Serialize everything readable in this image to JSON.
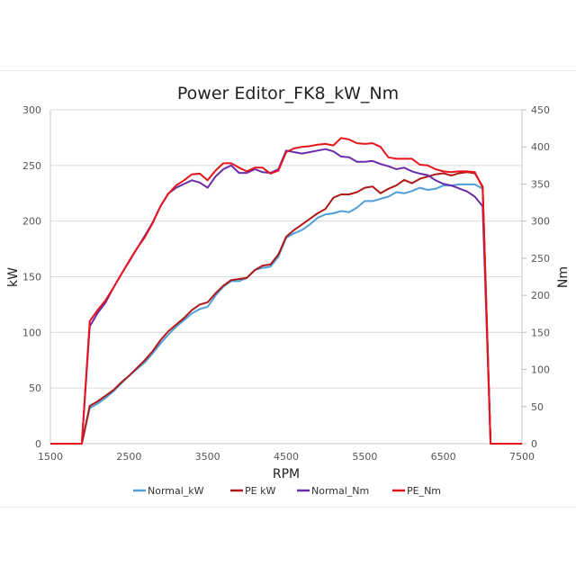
{
  "chart_data": {
    "type": "line",
    "title": "Power Editor_FK8_kW_Nm",
    "xlabel": "RPM",
    "ylabel_left": "kW",
    "ylabel_right": "Nm",
    "xlim": [
      1500,
      7500
    ],
    "ylim_left": [
      0,
      300
    ],
    "ylim_right": [
      0,
      450
    ],
    "x_ticks": [
      1500,
      2500,
      3500,
      4500,
      5500,
      6500,
      7500
    ],
    "y_left_ticks": [
      0,
      50,
      100,
      150,
      200,
      250,
      300
    ],
    "y_right_ticks": [
      0,
      50,
      100,
      150,
      200,
      250,
      300,
      350,
      400,
      450
    ],
    "grid": true,
    "legend_position": "bottom",
    "x": [
      1500,
      1900,
      2000,
      2100,
      2200,
      2300,
      2400,
      2500,
      2600,
      2700,
      2800,
      2900,
      3000,
      3100,
      3200,
      3300,
      3400,
      3500,
      3600,
      3700,
      3800,
      3900,
      4000,
      4100,
      4200,
      4300,
      4400,
      4500,
      4600,
      4700,
      4800,
      4900,
      5000,
      5100,
      5200,
      5300,
      5400,
      5500,
      5600,
      5700,
      5800,
      5900,
      6000,
      6100,
      6200,
      6300,
      6400,
      6500,
      6600,
      6700,
      6800,
      6900,
      7000,
      7100,
      7500
    ],
    "series": [
      {
        "name": "Normal_kW",
        "axis": "left",
        "color": "#4f9fd6",
        "values": [
          0,
          0,
          32,
          36,
          41,
          47,
          54,
          61,
          67,
          73,
          81,
          90,
          98,
          105,
          111,
          117,
          121,
          123,
          133,
          141,
          146,
          146,
          149,
          156,
          158,
          159,
          168,
          185,
          189,
          192,
          197,
          203,
          206,
          207,
          209,
          208,
          212,
          218,
          218,
          220,
          222,
          226,
          225,
          227,
          230,
          228,
          229,
          232,
          232,
          233,
          233,
          233,
          229,
          0,
          0
        ]
      },
      {
        "name": "PE kW",
        "axis": "left",
        "color": "#b01818",
        "values": [
          0,
          0,
          34,
          38,
          43,
          48,
          55,
          61,
          68,
          75,
          83,
          93,
          101,
          107,
          113,
          120,
          125,
          127,
          135,
          142,
          147,
          148,
          149,
          156,
          160,
          161,
          170,
          186,
          192,
          197,
          202,
          207,
          211,
          221,
          224,
          224,
          226,
          230,
          231,
          225,
          229,
          232,
          237,
          234,
          238,
          240,
          242,
          243,
          241,
          243,
          244,
          243,
          231,
          0,
          0
        ]
      },
      {
        "name": "Normal_Nm",
        "axis": "right",
        "color": "#6a2bab",
        "values": [
          0,
          0,
          158,
          176,
          190,
          210,
          228,
          245,
          263,
          280,
          298,
          320,
          337,
          345,
          350,
          355,
          352,
          345,
          360,
          370,
          375,
          365,
          365,
          370,
          366,
          365,
          370,
          395,
          393,
          391,
          393,
          395,
          397,
          394,
          387,
          386,
          380,
          380,
          381,
          377,
          374,
          370,
          372,
          367,
          364,
          362,
          355,
          350,
          348,
          344,
          340,
          333,
          320,
          0,
          0
        ]
      },
      {
        "name": "PE_Nm",
        "axis": "right",
        "color": "#e8141c",
        "values": [
          0,
          0,
          165,
          180,
          193,
          210,
          228,
          246,
          263,
          278,
          297,
          320,
          337,
          348,
          355,
          363,
          364,
          355,
          368,
          378,
          378,
          372,
          367,
          372,
          372,
          364,
          368,
          393,
          398,
          400,
          401,
          403,
          404,
          402,
          412,
          410,
          405,
          404,
          405,
          400,
          386,
          384,
          384,
          384,
          376,
          375,
          370,
          367,
          366,
          367,
          367,
          366,
          345,
          0,
          0
        ]
      }
    ]
  }
}
